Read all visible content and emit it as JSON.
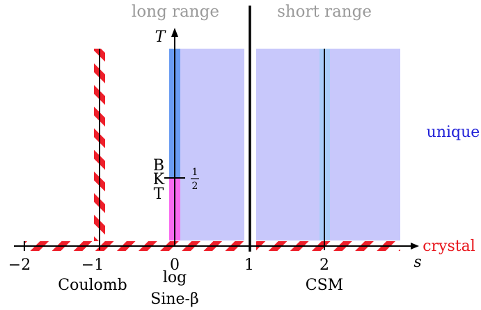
{
  "header": {
    "left_region": "long range",
    "right_region": "short range"
  },
  "axes": {
    "x_label": "s",
    "y_label": "T",
    "x_ticks": [
      "−2",
      "−1",
      "0",
      "1",
      "2"
    ]
  },
  "labels": {
    "coulomb": "Coulomb",
    "log": "log",
    "sine_beta": "Sine-β",
    "csm": "CSM",
    "bkt_b": "B",
    "bkt_k": "K",
    "bkt_t": "T",
    "half_numerator": "1",
    "half_denominator": "2"
  },
  "legend": {
    "unique": "unique",
    "crystal": "crystal"
  },
  "colors": {
    "unique_text": "#2020d8",
    "crystal_text": "#e8161c",
    "header_text": "#9a9a9a",
    "region_fill": "#c8c8fb",
    "blue_strip": "#6a9cf2",
    "light_blue_strip": "#a9cff9",
    "magenta_strip": "#f96af0",
    "hatch_red": "#ee1f2a"
  }
}
